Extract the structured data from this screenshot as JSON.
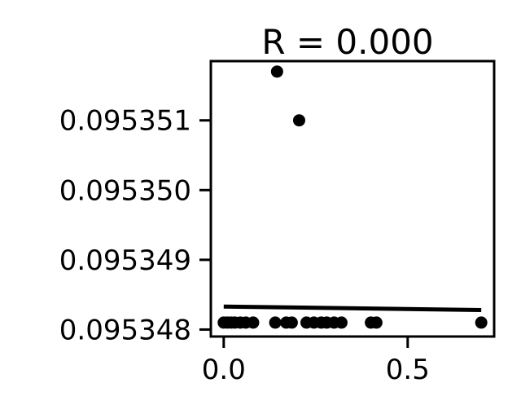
{
  "chart_data": {
    "type": "scatter",
    "title": "R = 0.000",
    "xlabel": "",
    "ylabel": "",
    "xlim": [
      -0.035,
      0.735
    ],
    "ylim": [
      0.0953479,
      0.09535185
    ],
    "x_ticks": [
      {
        "value": 0.0,
        "label": "0.0"
      },
      {
        "value": 0.5,
        "label": "0.5"
      }
    ],
    "y_ticks": [
      {
        "value": 0.095351,
        "label": "0.095351"
      },
      {
        "value": 0.09535,
        "label": "0.095350"
      },
      {
        "value": 0.095349,
        "label": "0.095349"
      },
      {
        "value": 0.095348,
        "label": "0.095348"
      }
    ],
    "grid": false,
    "points": [
      {
        "x": 0.0,
        "y": 0.0953481
      },
      {
        "x": 0.01,
        "y": 0.0953481
      },
      {
        "x": 0.02,
        "y": 0.0953481
      },
      {
        "x": 0.03,
        "y": 0.0953481
      },
      {
        "x": 0.045,
        "y": 0.0953481
      },
      {
        "x": 0.06,
        "y": 0.0953481
      },
      {
        "x": 0.08,
        "y": 0.0953481
      },
      {
        "x": 0.14,
        "y": 0.0953481
      },
      {
        "x": 0.17,
        "y": 0.0953481
      },
      {
        "x": 0.185,
        "y": 0.0953481
      },
      {
        "x": 0.225,
        "y": 0.0953481
      },
      {
        "x": 0.245,
        "y": 0.0953481
      },
      {
        "x": 0.265,
        "y": 0.0953481
      },
      {
        "x": 0.28,
        "y": 0.0953481
      },
      {
        "x": 0.3,
        "y": 0.0953481
      },
      {
        "x": 0.32,
        "y": 0.0953481
      },
      {
        "x": 0.4,
        "y": 0.0953481
      },
      {
        "x": 0.415,
        "y": 0.0953481
      },
      {
        "x": 0.7,
        "y": 0.0953481
      },
      {
        "x": 0.145,
        "y": 0.0953517
      },
      {
        "x": 0.205,
        "y": 0.095351
      }
    ],
    "fit_line": {
      "x": [
        0.0,
        0.7
      ],
      "y": [
        0.09534833,
        0.09534828
      ]
    },
    "marker_color": "#000000",
    "line_color": "#000000"
  }
}
